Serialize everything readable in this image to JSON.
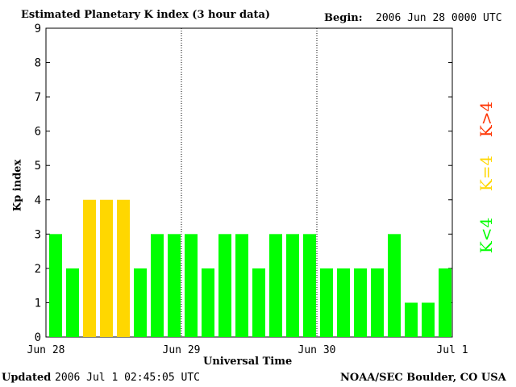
{
  "header": {
    "title": "Estimated Planetary K index (3 hour data)",
    "begin_label": "Begin:",
    "begin_value": "2006 Jun 28 0000 UTC"
  },
  "footer": {
    "updated_label": "Updated",
    "updated_value": "2006 Jul  1 02:45:05 UTC",
    "source": "NOAA/SEC Boulder, CO USA"
  },
  "legend": {
    "high": "K>4",
    "equal": "K=4",
    "low": "K<4",
    "colors": {
      "low": "#00ff00",
      "equal": "#ffd700",
      "high": "#ff3300"
    }
  },
  "chart_data": {
    "type": "bar",
    "title": "Estimated Planetary K index (3 hour data)",
    "xlabel": "Universal Time",
    "ylabel": "Kp index",
    "ylim": [
      0,
      9
    ],
    "yticks": [
      0,
      1,
      2,
      3,
      4,
      5,
      6,
      7,
      8,
      9
    ],
    "xticks": [
      "Jun 28",
      "Jun 29",
      "Jun 30",
      "Jul 1"
    ],
    "day_dividers": [
      "Jun 29",
      "Jun 30"
    ],
    "bars_per_day": 8,
    "values": [
      3,
      2,
      4,
      4,
      4,
      2,
      3,
      3,
      3,
      2,
      3,
      3,
      2,
      3,
      3,
      3,
      2,
      2,
      2,
      2,
      3,
      1,
      1,
      2
    ],
    "grid": false
  }
}
